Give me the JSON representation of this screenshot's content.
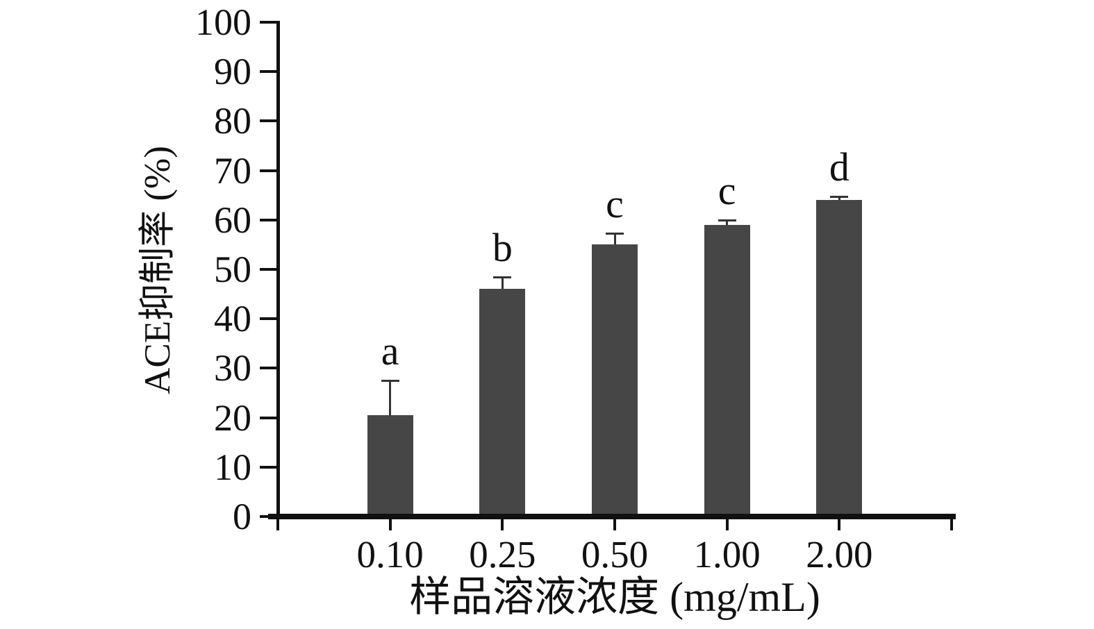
{
  "chart_data": {
    "type": "bar",
    "categories": [
      "0.10",
      "0.25",
      "0.50",
      "1.00",
      "2.00"
    ],
    "values": [
      20.5,
      46,
      55,
      59,
      64
    ],
    "error_plus": [
      7,
      2.5,
      2.3,
      1,
      0.8
    ],
    "sig_letters": [
      "a",
      "b",
      "c",
      "c",
      "d"
    ],
    "title": "",
    "xlabel": "样品溶液浓度 (mg/mL)",
    "ylabel": "ACE抑制率 (%)",
    "ylim": [
      0,
      100
    ],
    "yticks": [
      0,
      10,
      20,
      30,
      40,
      50,
      60,
      70,
      80,
      90,
      100
    ],
    "grid": "off",
    "legend": "none",
    "bar_color": "#464646",
    "axis_color": "#111111",
    "error_bar_color": "#333333",
    "background_color": "#ffffff"
  }
}
